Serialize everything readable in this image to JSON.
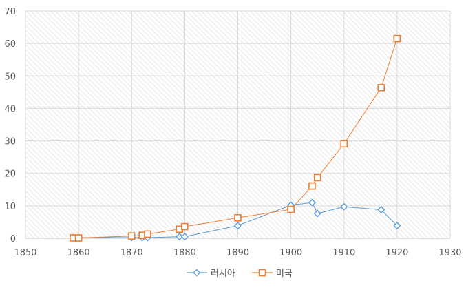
{
  "chart_data": {
    "type": "scatter",
    "title": "",
    "xlabel": "",
    "ylabel": "",
    "xlim": [
      1850,
      1930
    ],
    "ylim": [
      0,
      70
    ],
    "x_ticks": [
      1850,
      1860,
      1870,
      1880,
      1890,
      1900,
      1910,
      1920,
      1930
    ],
    "y_ticks": [
      0,
      10,
      20,
      30,
      40,
      50,
      60,
      70
    ],
    "grid": true,
    "legend_position": "bottom",
    "series": [
      {
        "name": "러시아",
        "color": "#5B9BD5",
        "marker": "diamond",
        "points": [
          {
            "x": 1859,
            "y": 0.2
          },
          {
            "x": 1860,
            "y": 0.2
          },
          {
            "x": 1870,
            "y": 0.2
          },
          {
            "x": 1872,
            "y": 0.2
          },
          {
            "x": 1873,
            "y": 0.2
          },
          {
            "x": 1879,
            "y": 0.5
          },
          {
            "x": 1880,
            "y": 0.5
          },
          {
            "x": 1890,
            "y": 3.9
          },
          {
            "x": 1900,
            "y": 10.2
          },
          {
            "x": 1904,
            "y": 11.0
          },
          {
            "x": 1905,
            "y": 7.6
          },
          {
            "x": 1910,
            "y": 9.7
          },
          {
            "x": 1917,
            "y": 8.8
          },
          {
            "x": 1920,
            "y": 3.9
          }
        ]
      },
      {
        "name": "미국",
        "color": "#ED7D31",
        "marker": "square",
        "points": [
          {
            "x": 1859,
            "y": 0.1
          },
          {
            "x": 1860,
            "y": 0.1
          },
          {
            "x": 1870,
            "y": 0.7
          },
          {
            "x": 1872,
            "y": 0.9
          },
          {
            "x": 1873,
            "y": 1.3
          },
          {
            "x": 1879,
            "y": 2.8
          },
          {
            "x": 1880,
            "y": 3.6
          },
          {
            "x": 1890,
            "y": 6.3
          },
          {
            "x": 1900,
            "y": 8.9
          },
          {
            "x": 1904,
            "y": 16.1
          },
          {
            "x": 1905,
            "y": 18.7
          },
          {
            "x": 1910,
            "y": 29.1
          },
          {
            "x": 1917,
            "y": 46.4
          },
          {
            "x": 1920,
            "y": 61.5
          }
        ]
      }
    ]
  }
}
